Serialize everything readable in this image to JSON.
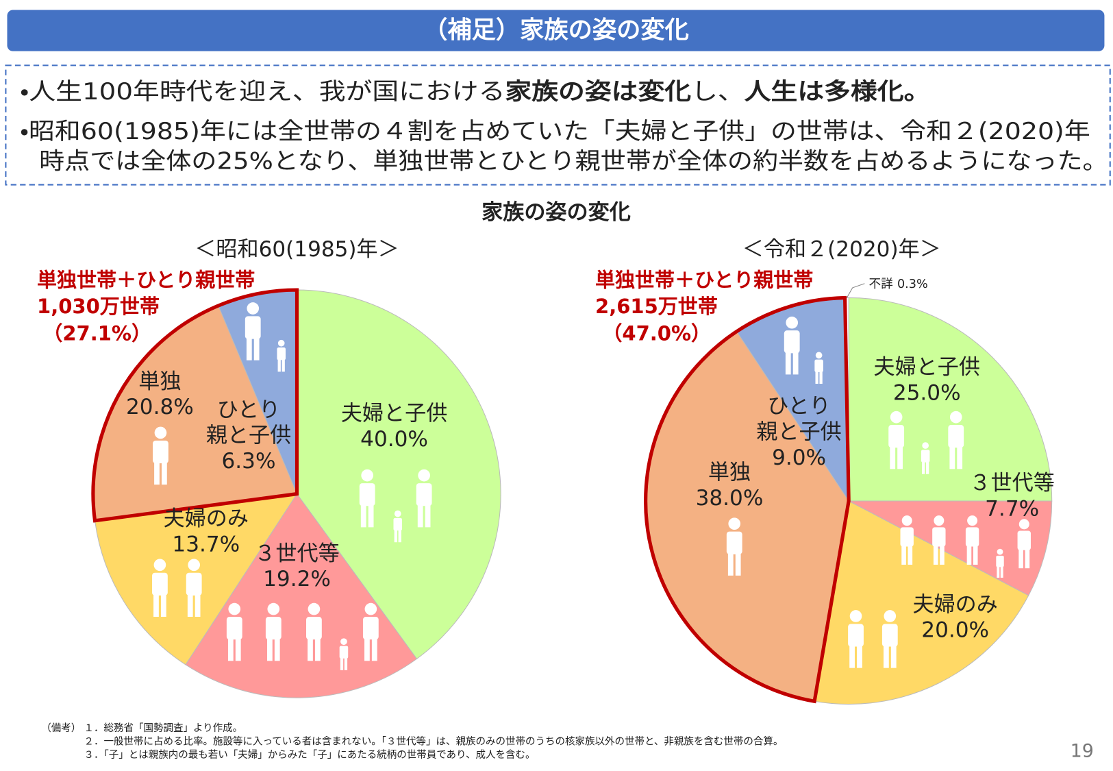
{
  "header": {
    "title": "（補足）家族の姿の変化"
  },
  "bullets": [
    [
      {
        "text": "・人生100年時代を迎え、我が国における",
        "bold": false
      },
      {
        "text": "家族の姿は変化",
        "bold": true
      },
      {
        "text": "し、",
        "bold": false
      },
      {
        "text": "人生は多様化",
        "bold": true
      },
      {
        "text": "。",
        "bold": true
      }
    ],
    [
      {
        "text": "・昭和60(1985)年には全世帯の４割を占めていた「夫婦と子供」の世帯は、令和２(2020)年",
        "bold": false
      }
    ],
    [
      {
        "text": "時点では全体の25%となり、単独世帯とひとり親世帯が全体の約半数を占めるようになった。",
        "bold": false
      }
    ]
  ],
  "charts_title": "家族の姿の変化",
  "chart_data": [
    {
      "type": "pie",
      "title": "＜昭和60(1985)年＞",
      "categories": [
        "夫婦と子供",
        "３世代等",
        "夫婦のみ",
        "単独",
        "ひとり\n親と子供"
      ],
      "values": [
        40.0,
        19.2,
        13.7,
        20.8,
        6.3
      ],
      "value_labels": [
        "40.0%",
        "19.2%",
        "13.7%",
        "20.8%",
        "6.3%"
      ],
      "colors": [
        "#ccff99",
        "#ff9999",
        "#ffd966",
        "#f4b183",
        "#8faadc"
      ],
      "annotations": [
        "単独世帯＋ひとり親世帯",
        "1,030万世帯",
        "（27.1%）"
      ]
    },
    {
      "type": "pie",
      "title": "＜令和２(2020)年＞",
      "categories": [
        "夫婦と子供",
        "３世代等",
        "夫婦のみ",
        "単独",
        "ひとり\n親と子供",
        "不詳"
      ],
      "values": [
        25.0,
        7.7,
        20.0,
        38.0,
        9.0,
        0.3
      ],
      "value_labels": [
        "25.0%",
        "7.7%",
        "20.0%",
        "38.0%",
        "9.0%",
        "0.3%"
      ],
      "colors": [
        "#ccff99",
        "#ff9999",
        "#ffd966",
        "#f4b183",
        "#8faadc",
        "#ffffff"
      ],
      "annotations": [
        "単独世帯＋ひとり親世帯",
        "2,615万世帯",
        "（47.0%）"
      ]
    }
  ],
  "notes": {
    "label": "（備考）",
    "items": [
      "１．総務省「国勢調査」より作成。",
      "２．一般世帯に占める比率。施設等に入っている者は含まれない。「３世代等」は、親族のみの世帯のうちの核家族以外の世帯と、非親族を含む世帯の合算。",
      "３．「子」とは親族内の最も若い「夫婦」からみた「子」にあたる続柄の世帯員であり、成人を含む。"
    ]
  },
  "page_number": "19"
}
